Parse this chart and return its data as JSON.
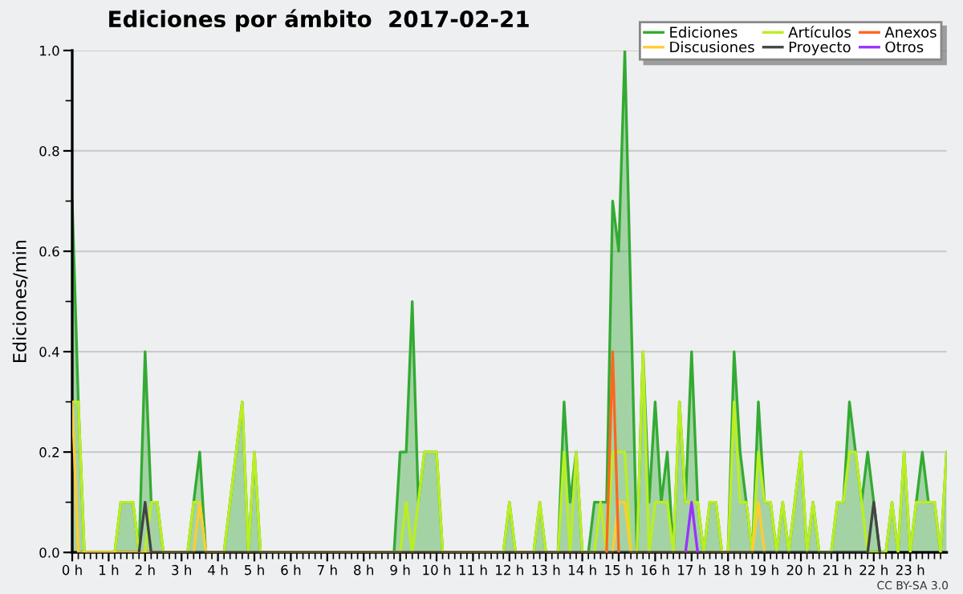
{
  "chart_data": {
    "type": "line",
    "title": "Ediciones por ámbito  2017-02-21",
    "ylabel": "Ediciones/min",
    "xlim": [
      0,
      24
    ],
    "ylim": [
      0,
      1
    ],
    "xticks": [
      {
        "value": 0,
        "label": "0 h"
      },
      {
        "value": 1,
        "label": "1 h"
      },
      {
        "value": 2,
        "label": "2 h"
      },
      {
        "value": 3,
        "label": "3 h"
      },
      {
        "value": 4,
        "label": "4 h"
      },
      {
        "value": 5,
        "label": "5 h"
      },
      {
        "value": 6,
        "label": "6 h"
      },
      {
        "value": 7,
        "label": "7 h"
      },
      {
        "value": 8,
        "label": "8 h"
      },
      {
        "value": 9,
        "label": "9 h"
      },
      {
        "value": 10,
        "label": "10 h"
      },
      {
        "value": 11,
        "label": "11 h"
      },
      {
        "value": 12,
        "label": "12 h"
      },
      {
        "value": 13,
        "label": "13 h"
      },
      {
        "value": 14,
        "label": "14 h"
      },
      {
        "value": 15,
        "label": "15 h"
      },
      {
        "value": 16,
        "label": "16 h"
      },
      {
        "value": 17,
        "label": "17 h"
      },
      {
        "value": 18,
        "label": "18 h"
      },
      {
        "value": 19,
        "label": "19 h"
      },
      {
        "value": 20,
        "label": "20 h"
      },
      {
        "value": 21,
        "label": "21 h"
      },
      {
        "value": 22,
        "label": "22 h"
      },
      {
        "value": 23,
        "label": "23 h"
      }
    ],
    "yticks": [
      {
        "value": 0,
        "label": "0.0"
      },
      {
        "value": 0.2,
        "label": "0.2"
      },
      {
        "value": 0.4,
        "label": "0.4"
      },
      {
        "value": 0.6,
        "label": "0.6"
      },
      {
        "value": 0.8,
        "label": "0.8"
      },
      {
        "value": 1,
        "label": "1.0"
      }
    ],
    "grid": "y",
    "legend": "top right",
    "marker": "none",
    "line_style": "solid",
    "annotations": [
      "CC BY-SA 3.0"
    ],
    "series": [
      {
        "name": "Ediciones",
        "type": "area",
        "color": "#33aa33",
        "x": [
          0,
          0.167,
          0.333,
          1.167,
          1.333,
          1.5,
          1.667,
          1.833,
          2,
          2.167,
          2.333,
          2.5,
          3.167,
          3.333,
          3.5,
          3.667,
          4.167,
          4.333,
          4.5,
          4.667,
          4.833,
          5,
          5.167,
          8.833,
          9,
          9.167,
          9.333,
          9.5,
          9.667,
          9.833,
          10,
          10.167,
          11.833,
          12,
          12.167,
          12.667,
          12.833,
          13,
          13.333,
          13.5,
          13.667,
          13.833,
          14,
          14.167,
          14.333,
          14.5,
          14.667,
          14.833,
          15,
          15.167,
          15.333,
          15.5,
          15.667,
          15.833,
          16,
          16.167,
          16.333,
          16.5,
          16.667,
          16.833,
          17,
          17.167,
          17.333,
          17.5,
          17.667,
          17.833,
          18,
          18.167,
          18.333,
          18.5,
          18.667,
          18.833,
          19,
          19.167,
          19.333,
          19.5,
          19.667,
          19.833,
          20,
          20.167,
          20.333,
          20.5,
          20.833,
          21,
          21.167,
          21.333,
          21.5,
          21.667,
          21.833,
          22,
          22.167,
          22.333,
          22.5,
          22.667,
          22.833,
          23,
          23.167,
          23.333,
          23.5,
          23.667,
          23.833,
          24
        ],
        "values": [
          0.7,
          0.3,
          0,
          0,
          0.1,
          0.1,
          0.1,
          0,
          0.4,
          0.1,
          0.1,
          0,
          0,
          0.1,
          0.2,
          0,
          0,
          0.1,
          0.2,
          0.3,
          0,
          0.2,
          0,
          0,
          0.2,
          0.2,
          0.5,
          0.1,
          0.2,
          0.2,
          0.2,
          0,
          0,
          0.1,
          0,
          0,
          0.1,
          0,
          0,
          0.3,
          0.1,
          0.2,
          0,
          0,
          0.1,
          0.1,
          0.1,
          0.7,
          0.6,
          1.0,
          0.5,
          0,
          0.4,
          0.1,
          0.3,
          0.1,
          0.2,
          0,
          0.3,
          0.1,
          0.4,
          0.1,
          0,
          0.1,
          0.1,
          0,
          0,
          0.4,
          0.2,
          0.1,
          0,
          0.3,
          0.1,
          0.1,
          0,
          0.1,
          0,
          0.1,
          0.2,
          0,
          0.1,
          0,
          0,
          0.1,
          0.1,
          0.3,
          0.2,
          0.1,
          0.2,
          0.1,
          0,
          0,
          0.1,
          0,
          0.2,
          0,
          0.1,
          0.2,
          0.1,
          0.1,
          0,
          0.2
        ]
      },
      {
        "name": "Discusiones",
        "color": "#ffcc33",
        "x": [
          0,
          0.167,
          3.333,
          3.5,
          3.667,
          14.667,
          14.833,
          15,
          15.167,
          15.333,
          18.667,
          18.833,
          19
        ],
        "values": [
          0.3,
          0,
          0,
          0.1,
          0,
          0,
          0,
          0.1,
          0.1,
          0,
          0,
          0.1,
          0
        ]
      },
      {
        "name": "Artículos",
        "color": "#bbee22",
        "x": [
          0,
          0.167,
          0.333,
          1.167,
          1.333,
          1.5,
          1.667,
          1.833,
          2,
          2.167,
          2.333,
          2.5,
          3.167,
          3.333,
          3.5,
          3.667,
          4.167,
          4.333,
          4.5,
          4.667,
          4.833,
          5,
          5.167,
          9,
          9.167,
          9.333,
          9.5,
          9.667,
          9.833,
          10,
          10.167,
          11.833,
          12,
          12.167,
          12.667,
          12.833,
          13,
          13.333,
          13.5,
          13.667,
          13.833,
          14,
          14.333,
          14.5,
          14.667,
          14.833,
          15,
          15.167,
          15.333,
          15.5,
          15.667,
          15.833,
          16,
          16.167,
          16.333,
          16.5,
          16.667,
          16.833,
          17,
          17.167,
          17.333,
          17.5,
          17.667,
          17.833,
          18,
          18.167,
          18.333,
          18.5,
          18.667,
          18.833,
          19,
          19.167,
          19.333,
          19.5,
          19.667,
          19.833,
          20,
          20.167,
          20.333,
          20.5,
          20.833,
          21,
          21.167,
          21.333,
          21.5,
          21.667,
          21.833,
          22,
          22.167,
          22.333,
          22.5,
          22.667,
          22.833,
          23,
          23.167,
          23.333,
          23.5,
          23.667,
          23.833,
          24
        ],
        "values": [
          0.3,
          0.3,
          0,
          0,
          0.1,
          0.1,
          0.1,
          0,
          0,
          0.1,
          0.1,
          0,
          0,
          0.1,
          0.1,
          0,
          0,
          0.1,
          0.2,
          0.3,
          0,
          0.2,
          0,
          0,
          0.1,
          0,
          0.1,
          0.2,
          0.2,
          0.2,
          0,
          0,
          0.1,
          0,
          0,
          0.1,
          0,
          0,
          0.2,
          0,
          0.2,
          0,
          0,
          0.1,
          0,
          0.2,
          0.2,
          0.2,
          0,
          0,
          0.4,
          0,
          0.1,
          0.1,
          0.1,
          0,
          0.3,
          0.1,
          0.1,
          0.1,
          0,
          0.1,
          0.1,
          0,
          0,
          0.3,
          0.1,
          0.1,
          0,
          0.2,
          0.1,
          0.1,
          0,
          0.1,
          0,
          0.1,
          0.2,
          0,
          0.1,
          0,
          0,
          0.1,
          0.1,
          0.2,
          0.2,
          0.1,
          0,
          0,
          0,
          0,
          0.1,
          0,
          0.2,
          0,
          0.1,
          0.1,
          0.1,
          0.1,
          0,
          0.2
        ]
      },
      {
        "name": "Proyecto",
        "color": "#444444",
        "x": [
          1.833,
          2,
          2.167,
          21.833,
          22,
          22.167
        ],
        "values": [
          0,
          0.1,
          0,
          0,
          0.1,
          0
        ]
      },
      {
        "name": "Anexos",
        "color": "#ff6622",
        "x": [
          14.667,
          14.833,
          15
        ],
        "values": [
          0,
          0.4,
          0
        ]
      },
      {
        "name": "Otros",
        "color": "#9933ff",
        "x": [
          16.833,
          17,
          17.167
        ],
        "values": [
          0,
          0.1,
          0
        ]
      }
    ]
  }
}
